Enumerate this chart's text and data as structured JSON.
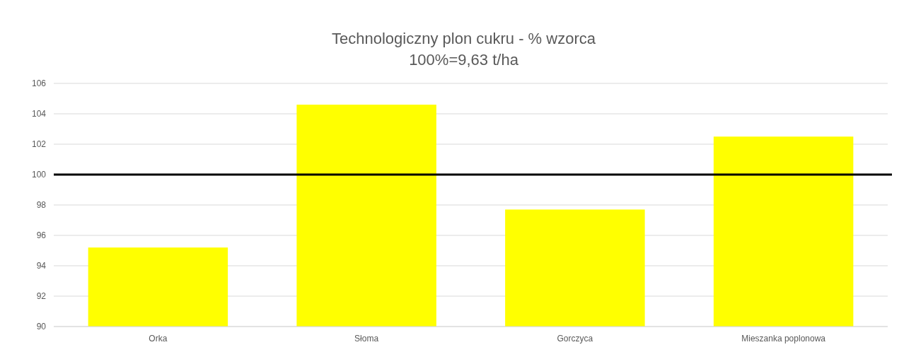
{
  "chart_data": {
    "type": "bar",
    "title": "Technologiczny plon cukru - % wzorca",
    "subtitle": "100%=9,63 t/ha",
    "categories": [
      "Orka",
      "Słoma",
      "Gorczyca",
      "Mieszanka poplonowa"
    ],
    "values": [
      95.2,
      104.6,
      97.7,
      102.5
    ],
    "color": "#ffff00",
    "ylim": [
      90,
      106
    ],
    "yticks": [
      90,
      92,
      94,
      96,
      98,
      100,
      102,
      104,
      106
    ],
    "grid": "y",
    "ref_lines": [
      {
        "axis": "y",
        "value": 100,
        "color": "#000000"
      }
    ]
  }
}
